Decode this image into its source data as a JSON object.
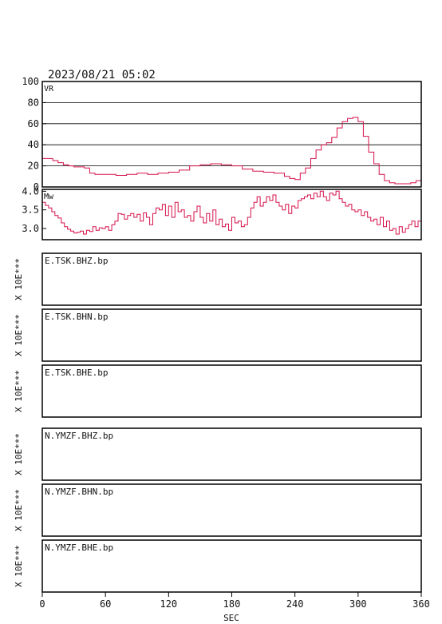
{
  "header": {
    "datetime": "2023/08/21 05:02"
  },
  "xaxis": {
    "label": "SEC",
    "ticks": [
      "0",
      "60",
      "120",
      "180",
      "240",
      "300",
      "360"
    ]
  },
  "colors": {
    "line": "#d6104a",
    "frame": "#000000",
    "text": "#111111"
  },
  "chart_data": [
    {
      "type": "line",
      "panel_label": "VR",
      "xlim": [
        0,
        360
      ],
      "ylim": [
        0,
        100
      ],
      "yticks": [
        "0",
        "20",
        "40",
        "60",
        "80",
        "100"
      ],
      "grid": true,
      "x": [
        0,
        5,
        10,
        15,
        20,
        25,
        30,
        35,
        40,
        45,
        50,
        60,
        70,
        80,
        90,
        100,
        110,
        120,
        130,
        140,
        150,
        160,
        170,
        180,
        190,
        200,
        210,
        220,
        230,
        235,
        240,
        245,
        250,
        255,
        260,
        265,
        270,
        275,
        280,
        285,
        290,
        295,
        300,
        305,
        310,
        315,
        320,
        325,
        330,
        335,
        340,
        345,
        350,
        355,
        360
      ],
      "y": [
        27,
        27,
        25,
        23,
        21,
        20,
        19,
        19,
        18,
        13,
        12,
        12,
        11,
        12,
        13,
        12,
        13,
        14,
        16,
        20,
        21,
        22,
        21,
        20,
        17,
        15,
        14,
        13,
        10,
        8,
        7,
        13,
        18,
        27,
        35,
        40,
        42,
        47,
        56,
        62,
        65,
        66,
        62,
        48,
        33,
        22,
        12,
        6,
        4,
        3,
        3,
        3,
        4,
        6,
        7
      ]
    },
    {
      "type": "line",
      "panel_label": "Mw",
      "xlim": [
        0,
        360
      ],
      "ylim": [
        2.7,
        4.05
      ],
      "yticks": [
        "3.0",
        "3.5",
        "4.0"
      ],
      "grid": false,
      "x": [
        0,
        3,
        6,
        9,
        12,
        15,
        18,
        21,
        24,
        27,
        30,
        33,
        36,
        39,
        42,
        45,
        48,
        51,
        54,
        57,
        60,
        63,
        66,
        69,
        72,
        75,
        78,
        81,
        84,
        87,
        90,
        93,
        96,
        99,
        102,
        105,
        108,
        111,
        114,
        117,
        120,
        123,
        126,
        129,
        132,
        135,
        138,
        141,
        144,
        147,
        150,
        153,
        156,
        159,
        162,
        165,
        168,
        171,
        174,
        177,
        180,
        183,
        186,
        189,
        192,
        195,
        198,
        201,
        204,
        207,
        210,
        213,
        216,
        219,
        222,
        225,
        228,
        231,
        234,
        237,
        240,
        243,
        246,
        249,
        252,
        255,
        258,
        261,
        264,
        267,
        270,
        273,
        276,
        279,
        282,
        285,
        288,
        291,
        294,
        297,
        300,
        303,
        306,
        309,
        312,
        315,
        318,
        321,
        324,
        327,
        330,
        333,
        336,
        339,
        342,
        345,
        348,
        351,
        354,
        357,
        360
      ],
      "y": [
        3.7,
        3.62,
        3.55,
        3.45,
        3.35,
        3.28,
        3.15,
        3.05,
        2.98,
        2.93,
        2.88,
        2.9,
        2.93,
        2.85,
        2.95,
        2.92,
        3.05,
        2.95,
        3.02,
        3.0,
        3.05,
        2.95,
        3.1,
        3.2,
        3.4,
        3.38,
        3.25,
        3.35,
        3.4,
        3.3,
        3.38,
        3.2,
        3.42,
        3.3,
        3.1,
        3.4,
        3.55,
        3.5,
        3.65,
        3.35,
        3.6,
        3.3,
        3.7,
        3.45,
        3.5,
        3.3,
        3.35,
        3.2,
        3.45,
        3.6,
        3.3,
        3.15,
        3.4,
        3.2,
        3.5,
        3.1,
        3.25,
        3.05,
        3.12,
        2.95,
        3.3,
        3.15,
        3.2,
        3.05,
        3.1,
        3.3,
        3.55,
        3.7,
        3.85,
        3.6,
        3.7,
        3.85,
        3.75,
        3.9,
        3.7,
        3.6,
        3.5,
        3.65,
        3.4,
        3.6,
        3.55,
        3.75,
        3.8,
        3.85,
        3.9,
        3.8,
        3.95,
        3.85,
        4.0,
        3.85,
        3.75,
        3.95,
        3.9,
        4.0,
        3.8,
        3.7,
        3.6,
        3.65,
        3.5,
        3.45,
        3.5,
        3.35,
        3.45,
        3.3,
        3.2,
        3.25,
        3.1,
        3.3,
        3.05,
        3.2,
        2.95,
        3.0,
        2.85,
        3.05,
        2.9,
        3.0,
        3.1,
        3.2,
        3.05,
        3.2,
        3.1
      ]
    }
  ],
  "waveform_panels": [
    {
      "label": "E.TSK.BHZ.bp",
      "scale_label": "X 10E***"
    },
    {
      "label": "E.TSK.BHN.bp",
      "scale_label": "X 10E***"
    },
    {
      "label": "E.TSK.BHE.bp",
      "scale_label": "X 10E***"
    },
    {
      "label": "N.YMZF.BHZ.bp",
      "scale_label": "X 10E***"
    },
    {
      "label": "N.YMZF.BHN.bp",
      "scale_label": "X 10E***"
    },
    {
      "label": "N.YMZF.BHE.bp",
      "scale_label": "X 10E***"
    }
  ]
}
